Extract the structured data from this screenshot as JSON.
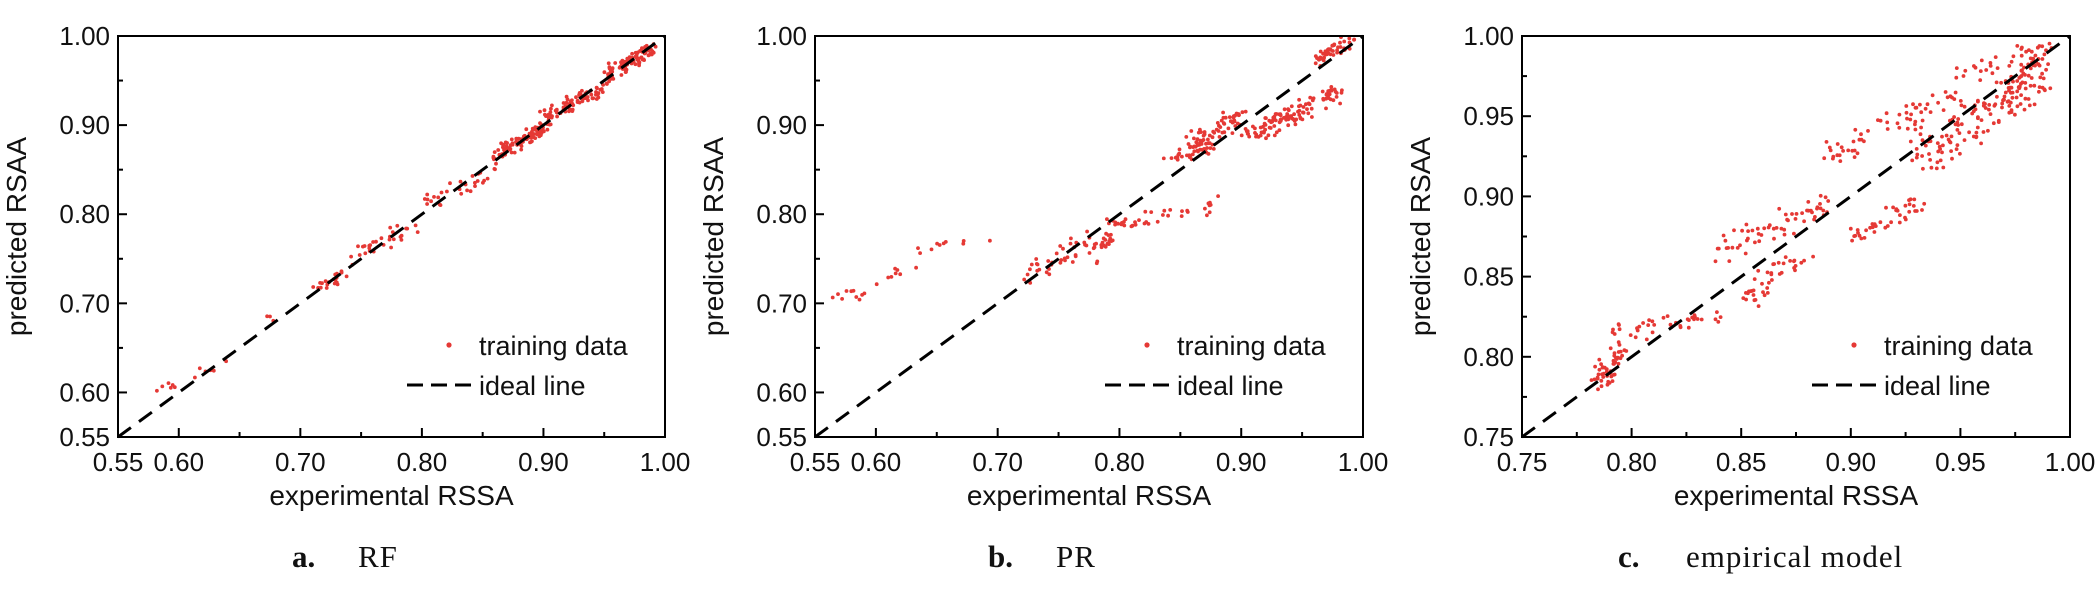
{
  "colors": {
    "points": "#e53935",
    "ideal_line": "#000000",
    "axes": "#000000",
    "background": "#ffffff"
  },
  "chart_data": [
    {
      "type": "scatter",
      "caption_letter": "a.",
      "caption_text": "RF",
      "xlabel": "experimental RSSA",
      "ylabel": "predicted RSAA",
      "xlim": [
        0.55,
        1.0
      ],
      "ylim": [
        0.55,
        1.0
      ],
      "xticks": [
        0.55,
        0.6,
        0.7,
        0.8,
        0.9,
        1.0
      ],
      "xtick_labels": [
        "0.55",
        "0.60",
        "0.70",
        "0.80",
        "0.90",
        "1.00"
      ],
      "yticks": [
        0.55,
        0.6,
        0.7,
        0.8,
        0.9,
        1.0
      ],
      "ytick_labels": [
        "0.55",
        "0.60",
        "0.70",
        "0.80",
        "0.90",
        "1.00"
      ],
      "minor_step": 0.05,
      "grid": false,
      "legend": {
        "placement": "bottom-right",
        "entries": [
          "training data",
          "ideal line"
        ]
      },
      "series": [
        {
          "name": "training data",
          "segments": [
            [
              0.58,
              0.6,
              0.6,
              0.61,
              6
            ],
            [
              0.61,
              0.64,
              0.61,
              0.64,
              6
            ],
            [
              0.67,
              0.68,
              0.68,
              0.69,
              3
            ],
            [
              0.71,
              0.74,
              0.71,
              0.74,
              20
            ],
            [
              0.74,
              0.8,
              0.74,
              0.8,
              30
            ],
            [
              0.8,
              0.86,
              0.8,
              0.86,
              30
            ],
            [
              0.86,
              0.9,
              0.86,
              0.9,
              90
            ],
            [
              0.9,
              0.95,
              0.9,
              0.95,
              90
            ],
            [
              0.95,
              0.99,
              0.95,
              0.99,
              90
            ]
          ],
          "jitter": 0.004
        },
        {
          "name": "ideal line",
          "x": [
            0.55,
            1.0
          ],
          "y": [
            0.55,
            1.0
          ]
        }
      ]
    },
    {
      "type": "scatter",
      "caption_letter": "b.",
      "caption_text": "PR",
      "xlabel": "experimental RSSA",
      "ylabel": "predicted RSAA",
      "xlim": [
        0.55,
        1.0
      ],
      "ylim": [
        0.55,
        1.0
      ],
      "xticks": [
        0.55,
        0.6,
        0.7,
        0.8,
        0.9,
        1.0
      ],
      "xtick_labels": [
        "0.55",
        "0.60",
        "0.70",
        "0.80",
        "0.90",
        "1.00"
      ],
      "yticks": [
        0.55,
        0.6,
        0.7,
        0.8,
        0.9,
        1.0
      ],
      "ytick_labels": [
        "0.55",
        "0.60",
        "0.70",
        "0.80",
        "0.90",
        "1.00"
      ],
      "minor_step": 0.05,
      "grid": false,
      "legend": {
        "placement": "bottom-right",
        "entries": [
          "training data",
          "ideal line"
        ]
      },
      "series": [
        {
          "name": "training data",
          "segments": [
            [
              0.56,
              0.6,
              0.7,
              0.72,
              10
            ],
            [
              0.6,
              0.64,
              0.72,
              0.76,
              10
            ],
            [
              0.64,
              0.7,
              0.76,
              0.78,
              8
            ],
            [
              0.72,
              0.78,
              0.72,
              0.78,
              40
            ],
            [
              0.78,
              0.8,
              0.74,
              0.81,
              30
            ],
            [
              0.8,
              0.88,
              0.78,
              0.82,
              30
            ],
            [
              0.84,
              0.88,
              0.86,
              0.88,
              40
            ],
            [
              0.86,
              0.9,
              0.87,
              0.92,
              60
            ],
            [
              0.9,
              0.94,
              0.88,
              0.92,
              40
            ],
            [
              0.92,
              0.98,
              0.88,
              0.95,
              80
            ],
            [
              0.96,
              0.99,
              0.97,
              1.0,
              50
            ]
          ],
          "jitter": 0.006
        },
        {
          "name": "ideal line",
          "x": [
            0.55,
            1.0
          ],
          "y": [
            0.55,
            1.0
          ]
        }
      ]
    },
    {
      "type": "scatter",
      "caption_letter": "c.",
      "caption_text": "empirical model",
      "xlabel": "experimental RSSA",
      "ylabel": "predicted RSAA",
      "xlim": [
        0.75,
        1.0
      ],
      "ylim": [
        0.75,
        1.0
      ],
      "xticks": [
        0.75,
        0.8,
        0.85,
        0.9,
        0.95,
        1.0
      ],
      "xtick_labels": [
        "0.75",
        "0.80",
        "0.85",
        "0.90",
        "0.95",
        "1.00"
      ],
      "yticks": [
        0.75,
        0.8,
        0.85,
        0.9,
        0.95,
        1.0
      ],
      "ytick_labels": [
        "0.75",
        "0.80",
        "0.85",
        "0.90",
        "0.95",
        "1.00"
      ],
      "minor_step": 0.025,
      "grid": false,
      "legend": {
        "placement": "bottom-right",
        "entries": [
          "training data",
          "ideal line"
        ]
      },
      "series": [
        {
          "name": "training data",
          "segments": [
            [
              0.785,
              0.795,
              0.78,
              0.81,
              50
            ],
            [
              0.79,
              0.84,
              0.81,
              0.83,
              40
            ],
            [
              0.84,
              0.89,
              0.86,
              0.9,
              60
            ],
            [
              0.85,
              0.88,
              0.83,
              0.87,
              40
            ],
            [
              0.89,
              0.95,
              0.92,
              0.97,
              60
            ],
            [
              0.95,
              0.99,
              0.97,
              1.0,
              30
            ],
            [
              0.9,
              0.93,
              0.87,
              0.9,
              40
            ],
            [
              0.93,
              0.99,
              0.91,
              0.99,
              120
            ],
            [
              0.96,
              0.99,
              0.94,
              1.0,
              50
            ]
          ],
          "jitter": 0.004
        },
        {
          "name": "ideal line",
          "x": [
            0.75,
            1.0
          ],
          "y": [
            0.75,
            1.0
          ]
        }
      ]
    }
  ]
}
